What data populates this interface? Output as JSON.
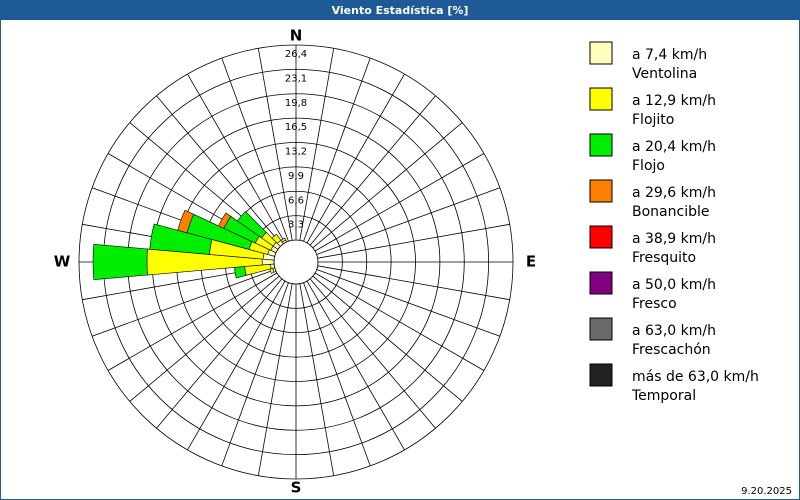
{
  "header": {
    "title": "Viento Estadística [%]"
  },
  "footer": {
    "date": "9.20.2025"
  },
  "chart_data": {
    "type": "windrose",
    "compass_labels": [
      "N",
      "E",
      "S",
      "W"
    ],
    "rlim": [
      0,
      26.4
    ],
    "rticks": [
      {
        "value": 3.3,
        "label": "3,3"
      },
      {
        "value": 6.6,
        "label": "6,6"
      },
      {
        "value": 9.9,
        "label": "9,9"
      },
      {
        "value": 13.2,
        "label": "13,2"
      },
      {
        "value": 16.5,
        "label": "16,5"
      },
      {
        "value": 19.8,
        "label": "19,8"
      },
      {
        "value": 23.1,
        "label": "23,1"
      },
      {
        "value": 26.4,
        "label": "26,4"
      }
    ],
    "x": [
      250,
      260,
      270,
      280,
      290,
      300,
      310,
      320,
      330
    ],
    "series": [
      {
        "name": "a 7,4 km/h",
        "class": "Ventolina",
        "color": "#ffffc0",
        "values": [
          0.3,
          0.5,
          1.6,
          1.5,
          1.0,
          0.8,
          0.8,
          0.6,
          0.3
        ]
      },
      {
        "name": "a 12,9 km/h",
        "class": "Flojito",
        "color": "#ffff00",
        "values": [
          0.4,
          3.5,
          15.6,
          7.3,
          2.6,
          2.3,
          1.9,
          1.0,
          0.3
        ]
      },
      {
        "name": "a 20,4 km/h",
        "class": "Flojo",
        "color": "#00ee00",
        "values": [
          0,
          1.4,
          7.3,
          8.1,
          8.7,
          4.7,
          4.0,
          0,
          0
        ]
      },
      {
        "name": "a 29,6 km/h",
        "class": "Bonancible",
        "color": "#ff8000",
        "values": [
          0,
          0,
          0,
          0,
          1.3,
          0.8,
          0,
          0,
          0
        ]
      },
      {
        "name": "a 38,9 km/h",
        "class": "Fresquito",
        "color": "#ff0000",
        "values": [
          0,
          0,
          0,
          0,
          0,
          0,
          0,
          0,
          0
        ]
      },
      {
        "name": "a 50,0 km/h",
        "class": "Fresco",
        "color": "#800080",
        "values": [
          0,
          0,
          0,
          0,
          0,
          0,
          0,
          0,
          0
        ]
      },
      {
        "name": "a 63,0 km/h",
        "class": "Frescachón",
        "color": "#6a6a6a",
        "values": [
          0,
          0,
          0,
          0,
          0,
          0,
          0,
          0,
          0
        ]
      },
      {
        "name": "más de 63,0 km/h",
        "class": "Temporal",
        "color": "#222222",
        "values": [
          0,
          0,
          0,
          0,
          0,
          0,
          0,
          0,
          0
        ]
      }
    ]
  }
}
